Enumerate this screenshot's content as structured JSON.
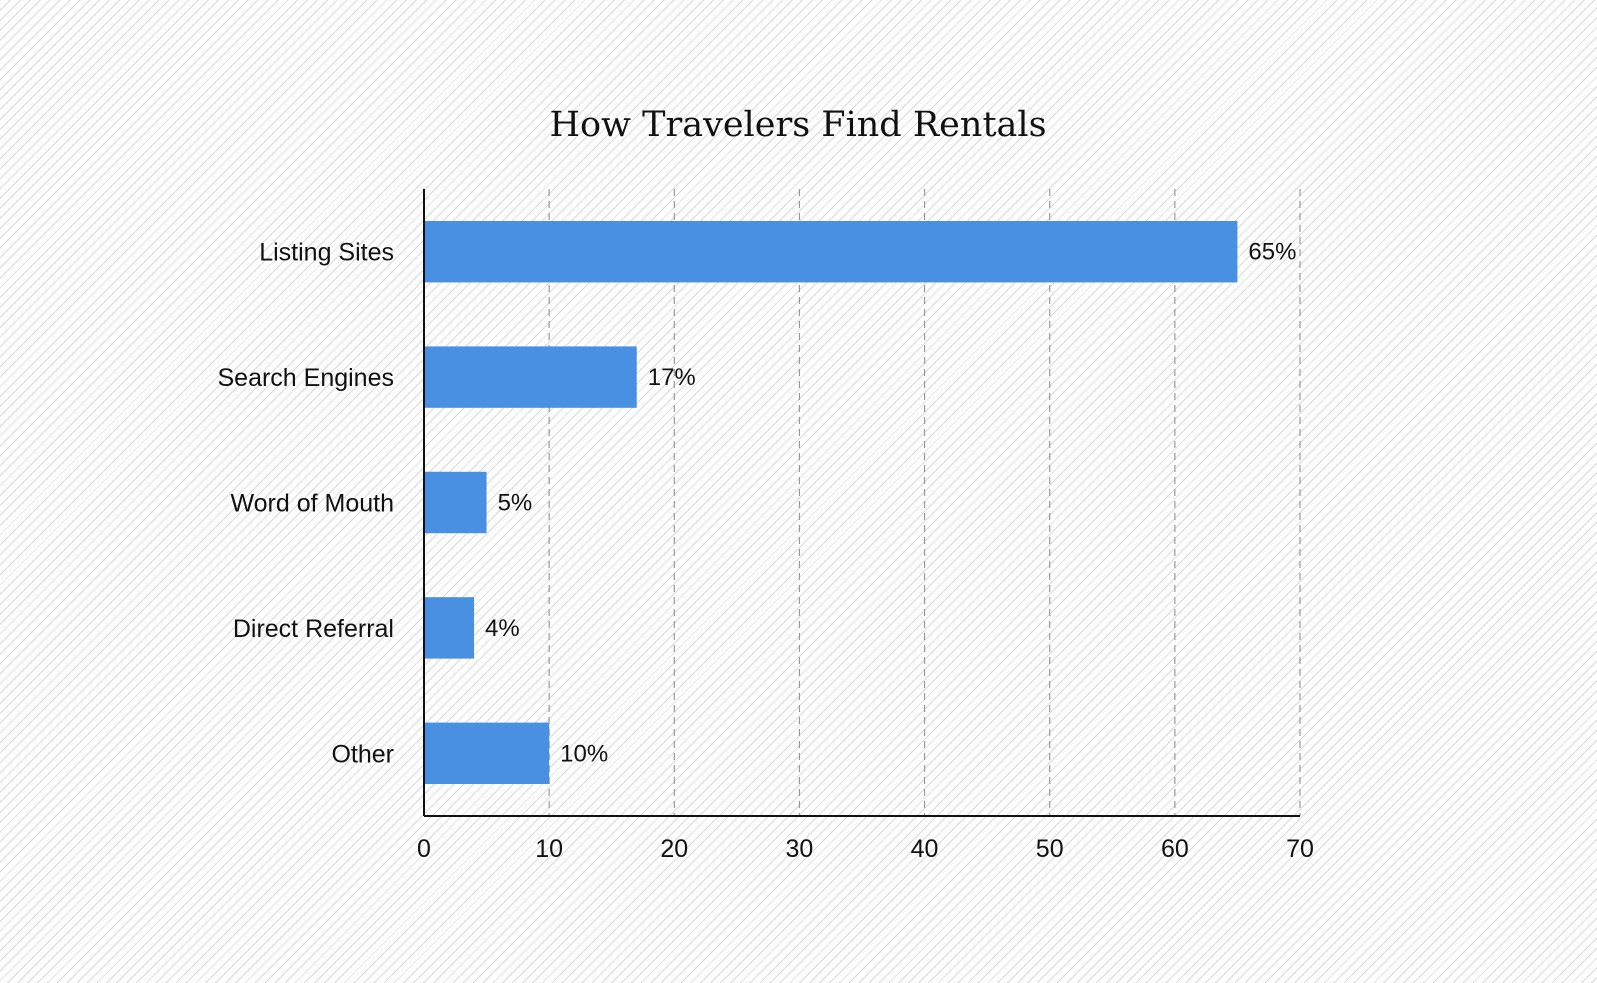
{
  "chart_data": {
    "type": "bar",
    "orientation": "horizontal",
    "title": "How Travelers Find Rentals",
    "xlabel": "",
    "ylabel": "",
    "categories": [
      "Listing Sites",
      "Search Engines",
      "Word of Mouth",
      "Direct Referral",
      "Other"
    ],
    "values": [
      65,
      17,
      5,
      4,
      10
    ],
    "data_labels": [
      "65%",
      "17%",
      "5%",
      "4%",
      "10%"
    ],
    "xlim": [
      0,
      70
    ],
    "x_ticks": [
      0,
      10,
      20,
      30,
      40,
      50,
      60,
      70
    ],
    "grid": "vertical dashed",
    "legend": "none",
    "bar_color": "#4a90e2",
    "gridline_color": "#999999",
    "axis_color": "#111111"
  }
}
